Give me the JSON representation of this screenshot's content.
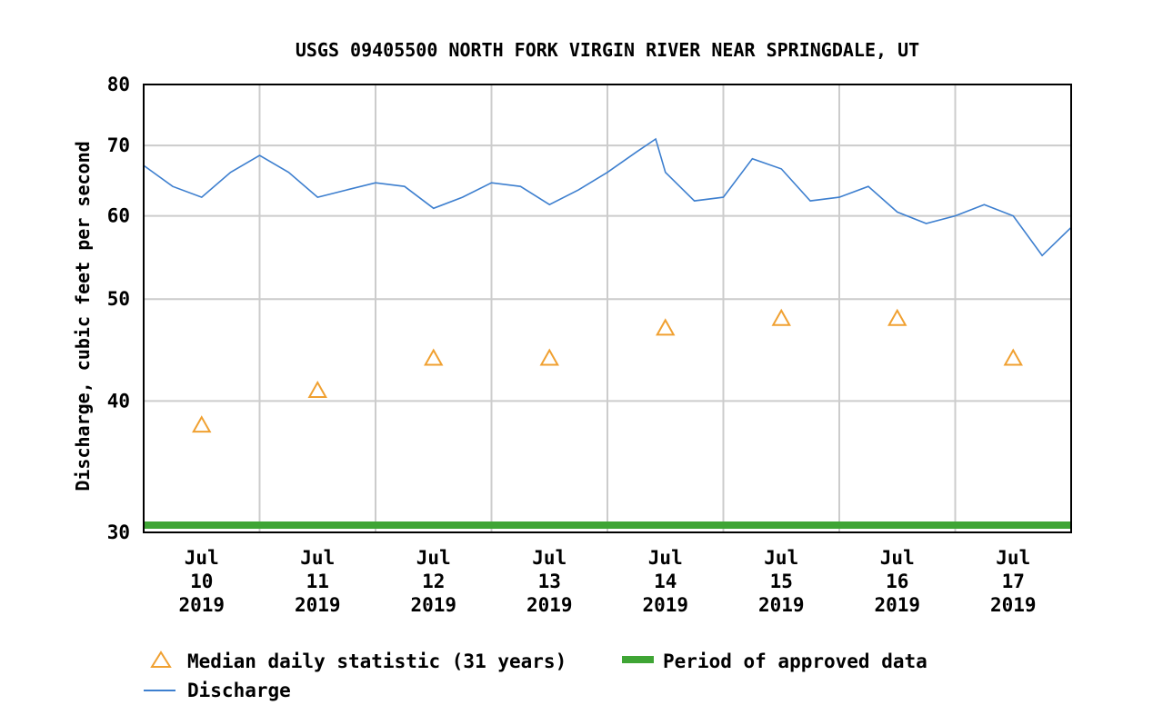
{
  "chart_data": {
    "type": "line",
    "title": "USGS 09405500 NORTH FORK VIRGIN RIVER NEAR SPRINGDALE, UT",
    "ylabel": "Discharge, cubic feet per second",
    "xlabel": "",
    "yscale": "log",
    "ylim": [
      30,
      80
    ],
    "yticks": [
      "30",
      "40",
      "50",
      "60",
      "70",
      "80"
    ],
    "xlim": [
      "2019-07-09T12:00",
      "2019-07-17T12:00"
    ],
    "xticks": [
      {
        "line1": "Jul",
        "line2": "10",
        "line3": "2019",
        "x": "2019-07-10"
      },
      {
        "line1": "Jul",
        "line2": "11",
        "line3": "2019",
        "x": "2019-07-11"
      },
      {
        "line1": "Jul",
        "line2": "12",
        "line3": "2019",
        "x": "2019-07-12"
      },
      {
        "line1": "Jul",
        "line2": "13",
        "line3": "2019",
        "x": "2019-07-13"
      },
      {
        "line1": "Jul",
        "line2": "14",
        "line3": "2019",
        "x": "2019-07-14"
      },
      {
        "line1": "Jul",
        "line2": "15",
        "line3": "2019",
        "x": "2019-07-15"
      },
      {
        "line1": "Jul",
        "line2": "16",
        "line3": "2019",
        "x": "2019-07-16"
      },
      {
        "line1": "Jul",
        "line2": "17",
        "line3": "2019",
        "x": "2019-07-17"
      }
    ],
    "grid": true,
    "series": [
      {
        "name": "Discharge",
        "color": "#3d7fcf",
        "style": "line",
        "x": [
          "2019-07-09T12:00",
          "2019-07-09T18:00",
          "2019-07-10T00:00",
          "2019-07-10T06:00",
          "2019-07-10T12:00",
          "2019-07-10T18:00",
          "2019-07-11T00:00",
          "2019-07-11T06:00",
          "2019-07-11T12:00",
          "2019-07-11T18:00",
          "2019-07-12T00:00",
          "2019-07-12T06:00",
          "2019-07-12T12:00",
          "2019-07-12T18:00",
          "2019-07-13T00:00",
          "2019-07-13T06:00",
          "2019-07-13T12:00",
          "2019-07-13T18:00",
          "2019-07-13T22:00",
          "2019-07-14T00:00",
          "2019-07-14T06:00",
          "2019-07-14T12:00",
          "2019-07-14T18:00",
          "2019-07-15T00:00",
          "2019-07-15T06:00",
          "2019-07-15T12:00",
          "2019-07-15T18:00",
          "2019-07-16T00:00",
          "2019-07-16T06:00",
          "2019-07-16T12:00",
          "2019-07-16T18:00",
          "2019-07-17T00:00",
          "2019-07-17T06:00",
          "2019-07-17T12:00"
        ],
        "y": [
          67,
          64,
          62.5,
          66,
          68.5,
          66,
          62.5,
          63.5,
          64.5,
          64,
          61,
          62.5,
          64.5,
          64,
          61.5,
          63.5,
          66,
          69,
          71,
          66,
          62,
          62.5,
          68,
          66.5,
          62,
          62.5,
          64,
          60.5,
          59,
          60,
          61.5,
          60,
          55,
          58.5
        ]
      },
      {
        "name": "Median daily statistic (31 years)",
        "color": "#f0a030",
        "style": "triangle",
        "x": [
          "2019-07-10",
          "2019-07-11",
          "2019-07-12",
          "2019-07-13",
          "2019-07-14",
          "2019-07-15",
          "2019-07-16",
          "2019-07-17"
        ],
        "y": [
          38,
          41,
          44,
          44,
          47,
          48,
          48,
          44
        ]
      },
      {
        "name": "Period of approved data",
        "color": "#3fa535",
        "style": "bar",
        "x": [
          "2019-07-09T12:00",
          "2019-07-17T12:00"
        ]
      }
    ],
    "legend_position": "bottom"
  }
}
